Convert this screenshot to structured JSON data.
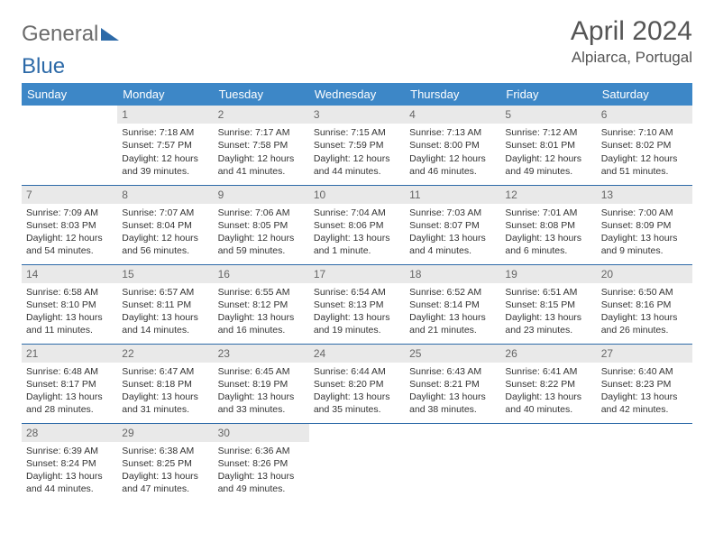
{
  "logo": {
    "text1": "General",
    "text2": "Blue"
  },
  "title": "April 2024",
  "location": "Alpiarca, Portugal",
  "colors": {
    "header_bg": "#3d87c7",
    "border": "#2d6aa8",
    "daynum_bg": "#e9e9e9",
    "logo_gray": "#6b6b6b",
    "logo_blue": "#2d6aa8"
  },
  "dayNames": [
    "Sunday",
    "Monday",
    "Tuesday",
    "Wednesday",
    "Thursday",
    "Friday",
    "Saturday"
  ],
  "weeks": [
    [
      null,
      {
        "n": "1",
        "sr": "7:18 AM",
        "ss": "7:57 PM",
        "dl": "12 hours and 39 minutes."
      },
      {
        "n": "2",
        "sr": "7:17 AM",
        "ss": "7:58 PM",
        "dl": "12 hours and 41 minutes."
      },
      {
        "n": "3",
        "sr": "7:15 AM",
        "ss": "7:59 PM",
        "dl": "12 hours and 44 minutes."
      },
      {
        "n": "4",
        "sr": "7:13 AM",
        "ss": "8:00 PM",
        "dl": "12 hours and 46 minutes."
      },
      {
        "n": "5",
        "sr": "7:12 AM",
        "ss": "8:01 PM",
        "dl": "12 hours and 49 minutes."
      },
      {
        "n": "6",
        "sr": "7:10 AM",
        "ss": "8:02 PM",
        "dl": "12 hours and 51 minutes."
      }
    ],
    [
      {
        "n": "7",
        "sr": "7:09 AM",
        "ss": "8:03 PM",
        "dl": "12 hours and 54 minutes."
      },
      {
        "n": "8",
        "sr": "7:07 AM",
        "ss": "8:04 PM",
        "dl": "12 hours and 56 minutes."
      },
      {
        "n": "9",
        "sr": "7:06 AM",
        "ss": "8:05 PM",
        "dl": "12 hours and 59 minutes."
      },
      {
        "n": "10",
        "sr": "7:04 AM",
        "ss": "8:06 PM",
        "dl": "13 hours and 1 minute."
      },
      {
        "n": "11",
        "sr": "7:03 AM",
        "ss": "8:07 PM",
        "dl": "13 hours and 4 minutes."
      },
      {
        "n": "12",
        "sr": "7:01 AM",
        "ss": "8:08 PM",
        "dl": "13 hours and 6 minutes."
      },
      {
        "n": "13",
        "sr": "7:00 AM",
        "ss": "8:09 PM",
        "dl": "13 hours and 9 minutes."
      }
    ],
    [
      {
        "n": "14",
        "sr": "6:58 AM",
        "ss": "8:10 PM",
        "dl": "13 hours and 11 minutes."
      },
      {
        "n": "15",
        "sr": "6:57 AM",
        "ss": "8:11 PM",
        "dl": "13 hours and 14 minutes."
      },
      {
        "n": "16",
        "sr": "6:55 AM",
        "ss": "8:12 PM",
        "dl": "13 hours and 16 minutes."
      },
      {
        "n": "17",
        "sr": "6:54 AM",
        "ss": "8:13 PM",
        "dl": "13 hours and 19 minutes."
      },
      {
        "n": "18",
        "sr": "6:52 AM",
        "ss": "8:14 PM",
        "dl": "13 hours and 21 minutes."
      },
      {
        "n": "19",
        "sr": "6:51 AM",
        "ss": "8:15 PM",
        "dl": "13 hours and 23 minutes."
      },
      {
        "n": "20",
        "sr": "6:50 AM",
        "ss": "8:16 PM",
        "dl": "13 hours and 26 minutes."
      }
    ],
    [
      {
        "n": "21",
        "sr": "6:48 AM",
        "ss": "8:17 PM",
        "dl": "13 hours and 28 minutes."
      },
      {
        "n": "22",
        "sr": "6:47 AM",
        "ss": "8:18 PM",
        "dl": "13 hours and 31 minutes."
      },
      {
        "n": "23",
        "sr": "6:45 AM",
        "ss": "8:19 PM",
        "dl": "13 hours and 33 minutes."
      },
      {
        "n": "24",
        "sr": "6:44 AM",
        "ss": "8:20 PM",
        "dl": "13 hours and 35 minutes."
      },
      {
        "n": "25",
        "sr": "6:43 AM",
        "ss": "8:21 PM",
        "dl": "13 hours and 38 minutes."
      },
      {
        "n": "26",
        "sr": "6:41 AM",
        "ss": "8:22 PM",
        "dl": "13 hours and 40 minutes."
      },
      {
        "n": "27",
        "sr": "6:40 AM",
        "ss": "8:23 PM",
        "dl": "13 hours and 42 minutes."
      }
    ],
    [
      {
        "n": "28",
        "sr": "6:39 AM",
        "ss": "8:24 PM",
        "dl": "13 hours and 44 minutes."
      },
      {
        "n": "29",
        "sr": "6:38 AM",
        "ss": "8:25 PM",
        "dl": "13 hours and 47 minutes."
      },
      {
        "n": "30",
        "sr": "6:36 AM",
        "ss": "8:26 PM",
        "dl": "13 hours and 49 minutes."
      },
      null,
      null,
      null,
      null
    ]
  ],
  "labels": {
    "sunrise": "Sunrise:",
    "sunset": "Sunset:",
    "daylight": "Daylight:"
  }
}
